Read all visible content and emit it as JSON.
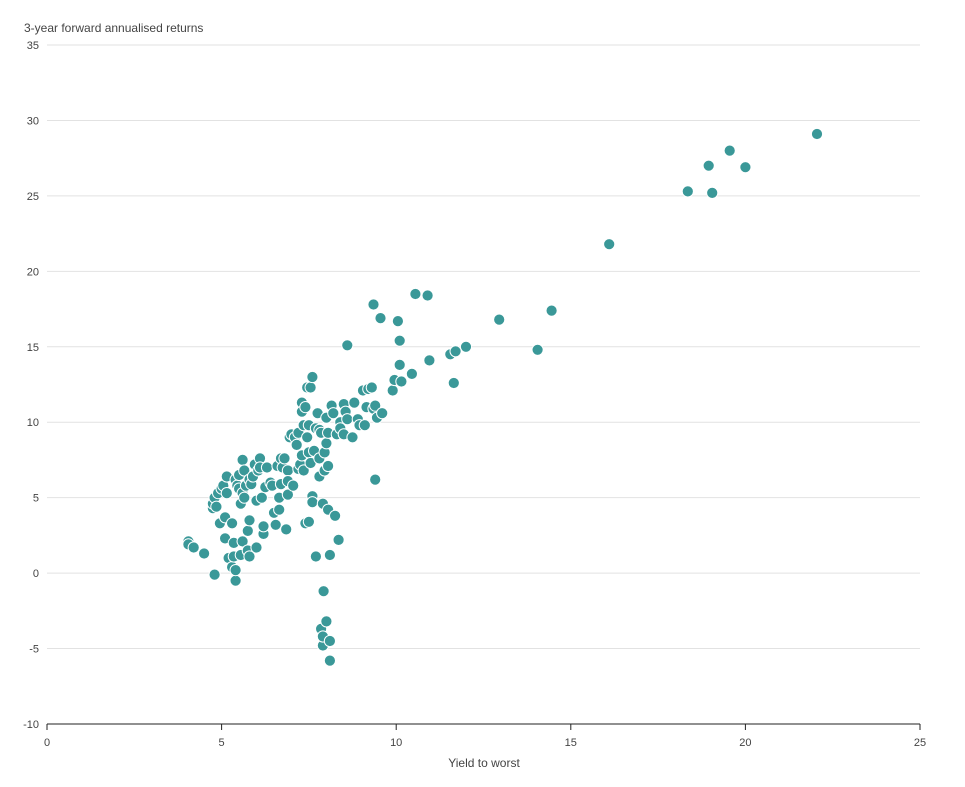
{
  "chart_data": {
    "type": "scatter",
    "title": "",
    "ylabel": "3-year forward annualised returns",
    "xlabel": "Yield to worst",
    "xlim": [
      0,
      25
    ],
    "ylim": [
      -10,
      35
    ],
    "x_ticks": [
      0,
      5,
      10,
      15,
      20,
      25
    ],
    "y_ticks": [
      -10,
      -5,
      0,
      5,
      10,
      15,
      20,
      25,
      30,
      35
    ],
    "grid": "horizontal",
    "point_color": "#3a9898",
    "points": [
      [
        4.05,
        2.1
      ],
      [
        4.05,
        1.9
      ],
      [
        4.2,
        1.7
      ],
      [
        4.5,
        1.3
      ],
      [
        4.8,
        -0.1
      ],
      [
        4.75,
        4.3
      ],
      [
        4.75,
        4.6
      ],
      [
        4.8,
        5.0
      ],
      [
        4.85,
        4.4
      ],
      [
        4.9,
        5.3
      ],
      [
        4.95,
        3.3
      ],
      [
        5.0,
        5.6
      ],
      [
        5.05,
        5.8
      ],
      [
        5.1,
        3.7
      ],
      [
        5.1,
        2.3
      ],
      [
        5.15,
        5.3
      ],
      [
        5.15,
        6.4
      ],
      [
        5.2,
        1.0
      ],
      [
        5.3,
        0.4
      ],
      [
        5.3,
        3.3
      ],
      [
        5.35,
        2.0
      ],
      [
        5.35,
        1.1
      ],
      [
        5.4,
        -0.5
      ],
      [
        5.4,
        0.2
      ],
      [
        5.4,
        6.2
      ],
      [
        5.45,
        5.8
      ],
      [
        5.5,
        5.6
      ],
      [
        5.5,
        6.5
      ],
      [
        5.55,
        4.6
      ],
      [
        5.55,
        1.2
      ],
      [
        5.6,
        5.3
      ],
      [
        5.6,
        7.5
      ],
      [
        5.6,
        2.1
      ],
      [
        5.65,
        5.0
      ],
      [
        5.65,
        6.8
      ],
      [
        5.7,
        5.8
      ],
      [
        5.75,
        1.5
      ],
      [
        5.75,
        2.8
      ],
      [
        5.8,
        6.2
      ],
      [
        5.8,
        3.5
      ],
      [
        5.8,
        1.1
      ],
      [
        5.85,
        5.9
      ],
      [
        5.9,
        6.4
      ],
      [
        5.95,
        7.2
      ],
      [
        6.0,
        1.7
      ],
      [
        6.0,
        4.8
      ],
      [
        6.05,
        6.8
      ],
      [
        6.1,
        7.6
      ],
      [
        6.1,
        7.0
      ],
      [
        6.15,
        5.0
      ],
      [
        6.2,
        2.6
      ],
      [
        6.2,
        3.1
      ],
      [
        6.25,
        5.7
      ],
      [
        6.3,
        7.0
      ],
      [
        6.4,
        6.0
      ],
      [
        6.45,
        5.8
      ],
      [
        6.5,
        4.0
      ],
      [
        6.55,
        3.2
      ],
      [
        6.6,
        7.1
      ],
      [
        6.65,
        5.0
      ],
      [
        6.65,
        4.2
      ],
      [
        6.7,
        5.9
      ],
      [
        6.7,
        7.6
      ],
      [
        6.75,
        7.0
      ],
      [
        6.8,
        7.6
      ],
      [
        6.85,
        2.9
      ],
      [
        6.9,
        5.2
      ],
      [
        6.9,
        6.8
      ],
      [
        6.9,
        6.1
      ],
      [
        6.95,
        9.0
      ],
      [
        7.0,
        9.2
      ],
      [
        7.05,
        5.8
      ],
      [
        7.1,
        9.0
      ],
      [
        7.15,
        8.5
      ],
      [
        7.2,
        9.3
      ],
      [
        7.2,
        6.9
      ],
      [
        7.25,
        7.2
      ],
      [
        7.3,
        11.3
      ],
      [
        7.3,
        10.7
      ],
      [
        7.3,
        7.8
      ],
      [
        7.35,
        6.8
      ],
      [
        7.35,
        9.8
      ],
      [
        7.4,
        11.0
      ],
      [
        7.4,
        3.3
      ],
      [
        7.45,
        12.3
      ],
      [
        7.45,
        9.0
      ],
      [
        7.5,
        3.4
      ],
      [
        7.5,
        9.8
      ],
      [
        7.5,
        8.0
      ],
      [
        7.55,
        12.3
      ],
      [
        7.55,
        7.3
      ],
      [
        7.6,
        13.0
      ],
      [
        7.6,
        5.1
      ],
      [
        7.6,
        4.7
      ],
      [
        7.65,
        8.1
      ],
      [
        7.7,
        1.1
      ],
      [
        7.7,
        9.6
      ],
      [
        7.75,
        10.6
      ],
      [
        7.8,
        9.5
      ],
      [
        7.8,
        7.6
      ],
      [
        7.8,
        6.4
      ],
      [
        7.85,
        9.3
      ],
      [
        7.85,
        -3.7
      ],
      [
        7.9,
        4.6
      ],
      [
        7.9,
        -4.8
      ],
      [
        7.9,
        -4.2
      ],
      [
        7.92,
        -1.2
      ],
      [
        7.95,
        8.0
      ],
      [
        7.95,
        6.8
      ],
      [
        8.0,
        10.3
      ],
      [
        8.0,
        8.6
      ],
      [
        8.0,
        -3.2
      ],
      [
        8.05,
        9.3
      ],
      [
        8.05,
        7.1
      ],
      [
        8.05,
        4.2
      ],
      [
        8.1,
        -4.5
      ],
      [
        8.1,
        -5.8
      ],
      [
        8.1,
        1.2
      ],
      [
        8.15,
        11.1
      ],
      [
        8.2,
        10.6
      ],
      [
        8.25,
        3.8
      ],
      [
        8.3,
        9.2
      ],
      [
        8.35,
        2.2
      ],
      [
        8.4,
        10.0
      ],
      [
        8.4,
        9.6
      ],
      [
        8.5,
        11.2
      ],
      [
        8.5,
        9.2
      ],
      [
        8.55,
        10.7
      ],
      [
        8.6,
        15.1
      ],
      [
        8.6,
        10.2
      ],
      [
        8.75,
        9.0
      ],
      [
        8.8,
        11.3
      ],
      [
        8.9,
        10.2
      ],
      [
        8.95,
        9.8
      ],
      [
        9.05,
        12.1
      ],
      [
        9.1,
        9.8
      ],
      [
        9.15,
        11.0
      ],
      [
        9.2,
        12.2
      ],
      [
        9.3,
        12.3
      ],
      [
        9.35,
        17.8
      ],
      [
        9.35,
        10.9
      ],
      [
        9.4,
        11.1
      ],
      [
        9.4,
        6.2
      ],
      [
        9.45,
        10.3
      ],
      [
        9.55,
        16.9
      ],
      [
        9.6,
        10.6
      ],
      [
        9.9,
        12.1
      ],
      [
        9.95,
        12.8
      ],
      [
        10.05,
        16.7
      ],
      [
        10.1,
        15.4
      ],
      [
        10.1,
        13.8
      ],
      [
        10.15,
        12.7
      ],
      [
        10.45,
        13.2
      ],
      [
        10.55,
        18.5
      ],
      [
        10.9,
        18.4
      ],
      [
        10.95,
        14.1
      ],
      [
        11.55,
        14.5
      ],
      [
        11.65,
        12.6
      ],
      [
        11.7,
        14.7
      ],
      [
        12.0,
        15.0
      ],
      [
        12.95,
        16.8
      ],
      [
        14.05,
        14.8
      ],
      [
        14.45,
        17.4
      ],
      [
        16.1,
        21.8
      ],
      [
        18.35,
        25.3
      ],
      [
        18.95,
        27.0
      ],
      [
        19.05,
        25.2
      ],
      [
        19.55,
        28.0
      ],
      [
        20.0,
        26.9
      ],
      [
        22.05,
        29.1
      ]
    ]
  }
}
